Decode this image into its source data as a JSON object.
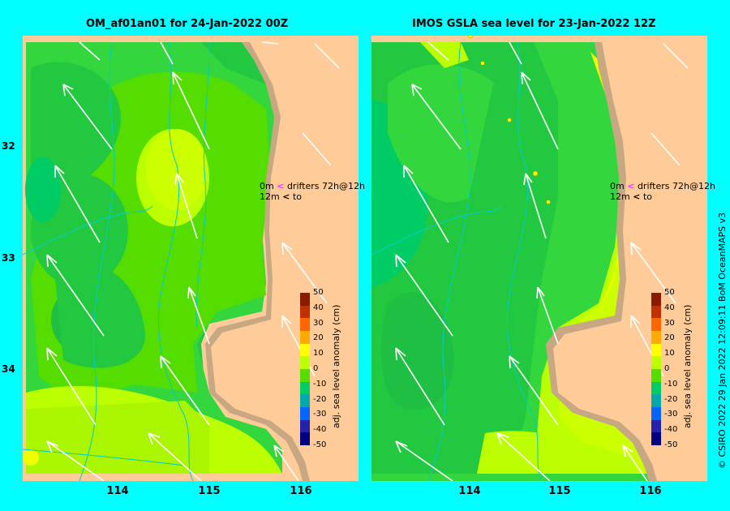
{
  "panels": [
    {
      "title": "OM_af01an01 for 24-Jan-2022 00Z",
      "drifter_top": "0m",
      "drifter_label": "drifters 72h@12h",
      "drifter_bottom": "12m",
      "drifter_to": "to"
    },
    {
      "title": "IMOS GSLA sea level  for 23-Jan-2022 12Z",
      "drifter_top": "0m",
      "drifter_label": "drifters 72h@12h",
      "drifter_bottom": "12m",
      "drifter_to": "to"
    }
  ],
  "lat_ticks": [
    "32",
    "33",
    "34"
  ],
  "lon_ticks": [
    "114",
    "115",
    "116"
  ],
  "colorbar": {
    "title": "adj. sea level anomaly (cm)",
    "ticks": [
      "50",
      "40",
      "30",
      "20",
      "10",
      "0",
      "-10",
      "-20",
      "-30",
      "-40",
      "-50"
    ],
    "colors": [
      "#8b1a00",
      "#c03000",
      "#ff6600",
      "#ffaa00",
      "#ffff00",
      "#bbff00",
      "#55dd00",
      "#00cc66",
      "#00aaaa",
      "#0066ff",
      "#2222aa",
      "#000080"
    ]
  },
  "credit": "© CSIRO 2022   29 Jan 2022 12:09:11 BoM OceanMAPS v3"
}
